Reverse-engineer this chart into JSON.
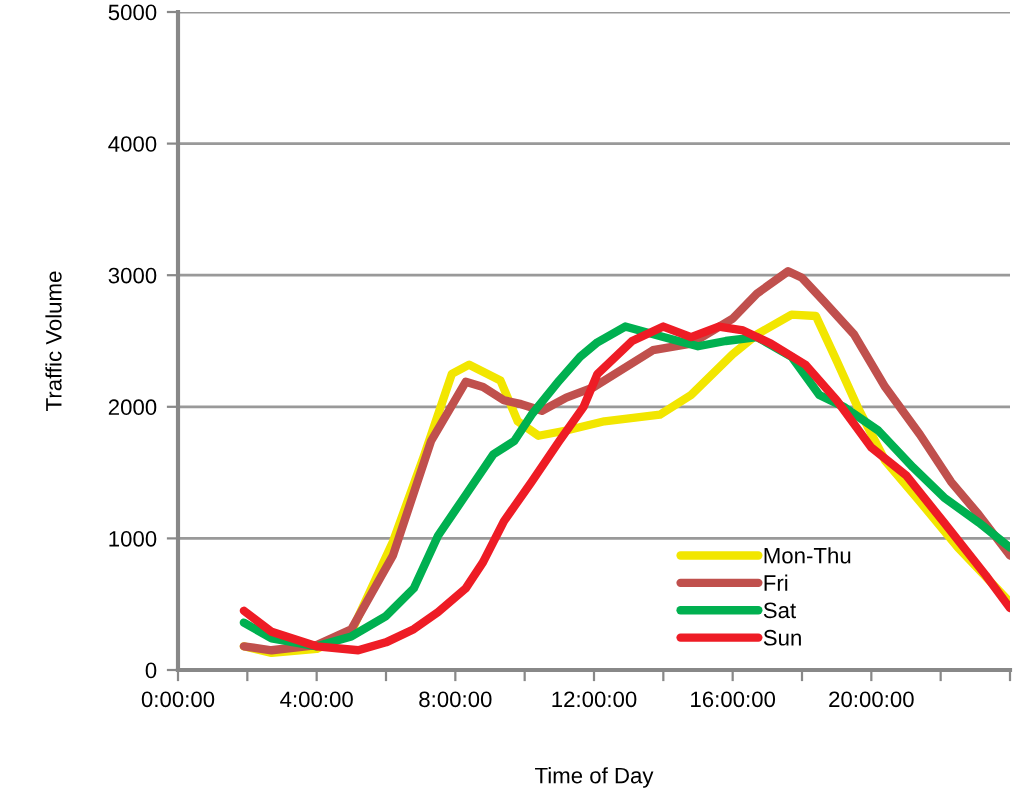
{
  "chart_data": {
    "type": "line",
    "xlabel": "Time of Day",
    "ylabel": "Traffic Volume",
    "xlim": [
      0,
      24
    ],
    "ylim": [
      0,
      5000
    ],
    "xticks": [
      {
        "value": 0,
        "label": "0:00:00"
      },
      {
        "value": 2,
        "label": null
      },
      {
        "value": 4,
        "label": "4:00:00"
      },
      {
        "value": 6,
        "label": null
      },
      {
        "value": 8,
        "label": "8:00:00"
      },
      {
        "value": 10,
        "label": null
      },
      {
        "value": 12,
        "label": "12:00:00"
      },
      {
        "value": 14,
        "label": null
      },
      {
        "value": 16,
        "label": "16:00:00"
      },
      {
        "value": 18,
        "label": null
      },
      {
        "value": 20,
        "label": "20:00:00"
      },
      {
        "value": 22,
        "label": null
      },
      {
        "value": 24,
        "label": null
      }
    ],
    "yticks": [
      0,
      1000,
      2000,
      3000,
      4000,
      5000
    ],
    "grid": "y",
    "legend": "bottom right",
    "marker": "none",
    "line_style": "solid",
    "series": [
      {
        "name": "Mon-Thu",
        "color": "#f2e600",
        "x": [
          1.9,
          2.7,
          4,
          5,
          6.2,
          7.1,
          7.9,
          8.4,
          9.3,
          9.8,
          10.4,
          11.2,
          12.3,
          13.9,
          14.8,
          16,
          16.7,
          17.7,
          18.4,
          19,
          19.6,
          20.4,
          21.4,
          22.5,
          24
        ],
        "values": [
          180,
          130,
          160,
          290,
          975,
          1630,
          2250,
          2320,
          2200,
          1890,
          1780,
          1820,
          1890,
          1940,
          2090,
          2400,
          2550,
          2700,
          2690,
          2350,
          2000,
          1590,
          1280,
          930,
          515
        ]
      },
      {
        "name": "Fri",
        "color": "#c0504d",
        "x": [
          1.9,
          2.7,
          4,
          5,
          6.2,
          7.3,
          8.3,
          8.8,
          9.4,
          9.9,
          10.5,
          11.2,
          12,
          12.3,
          13.7,
          14.8,
          16,
          16.7,
          17.6,
          18,
          18.6,
          19.5,
          20.4,
          21.4,
          22.3,
          23.1,
          24
        ],
        "values": [
          180,
          150,
          190,
          310,
          870,
          1740,
          2190,
          2150,
          2050,
          2020,
          1970,
          2070,
          2150,
          2200,
          2430,
          2480,
          2670,
          2860,
          3030,
          2980,
          2810,
          2550,
          2150,
          1790,
          1430,
          1180,
          870
        ]
      },
      {
        "name": "Sat",
        "color": "#00b050",
        "x": [
          1.9,
          2.7,
          4,
          5,
          6,
          6.8,
          7.5,
          8.3,
          9.1,
          9.7,
          10.2,
          11,
          11.6,
          12.1,
          12.9,
          14,
          15,
          15.8,
          16.7,
          17.7,
          18.5,
          19.2,
          20.2,
          21.2,
          22.1,
          23.1,
          24
        ],
        "values": [
          360,
          240,
          180,
          255,
          410,
          620,
          1020,
          1330,
          1640,
          1740,
          1940,
          2200,
          2380,
          2490,
          2610,
          2530,
          2460,
          2500,
          2530,
          2380,
          2090,
          2000,
          1820,
          1540,
          1310,
          1120,
          930
        ]
      },
      {
        "name": "Sun",
        "color": "#ee1c25",
        "x": [
          1.9,
          2.7,
          4,
          5.2,
          6,
          6.8,
          7.5,
          8.3,
          8.8,
          9.4,
          10.2,
          11,
          11.7,
          12.1,
          13.1,
          14,
          14.8,
          15.6,
          16.3,
          17.1,
          18.1,
          19,
          20,
          21,
          22.1,
          23.3,
          24
        ],
        "values": [
          450,
          290,
          180,
          150,
          210,
          310,
          440,
          620,
          820,
          1130,
          1430,
          1740,
          2000,
          2250,
          2500,
          2610,
          2530,
          2610,
          2580,
          2480,
          2320,
          2050,
          1690,
          1480,
          1120,
          720,
          470
        ]
      }
    ]
  }
}
